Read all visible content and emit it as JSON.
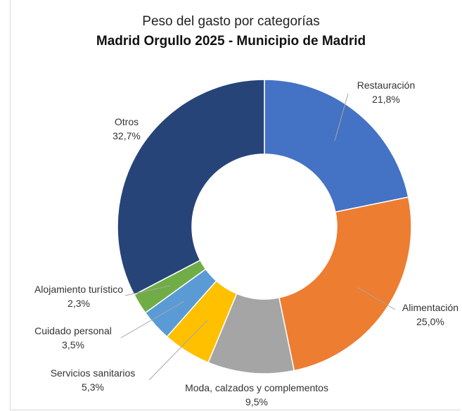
{
  "chart_data": {
    "type": "donut",
    "title": "Peso del gasto por categorías",
    "subtitle": "Madrid Orgullo 2025 - Municipio de Madrid",
    "slices": [
      {
        "label": "Restauración",
        "value": 21.8,
        "value_label": "21,8%",
        "color": "#4472C4"
      },
      {
        "label": "Alimentación",
        "value": 25.0,
        "value_label": "25,0%",
        "color": "#ED7D31"
      },
      {
        "label": "Moda, calzados y complementos",
        "value": 9.5,
        "value_label": "9,5%",
        "color": "#A5A5A5"
      },
      {
        "label": "Servicios sanitarios",
        "value": 5.3,
        "value_label": "5,3%",
        "color": "#FFC000"
      },
      {
        "label": "Cuidado personal",
        "value": 3.5,
        "value_label": "3,5%",
        "color": "#5B9BD5"
      },
      {
        "label": "Alojamiento turístico",
        "value": 2.3,
        "value_label": "2,3%",
        "color": "#70AD47"
      },
      {
        "label": "Otros",
        "value": 32.7,
        "value_label": "32,7%",
        "color": "#264478"
      }
    ]
  }
}
